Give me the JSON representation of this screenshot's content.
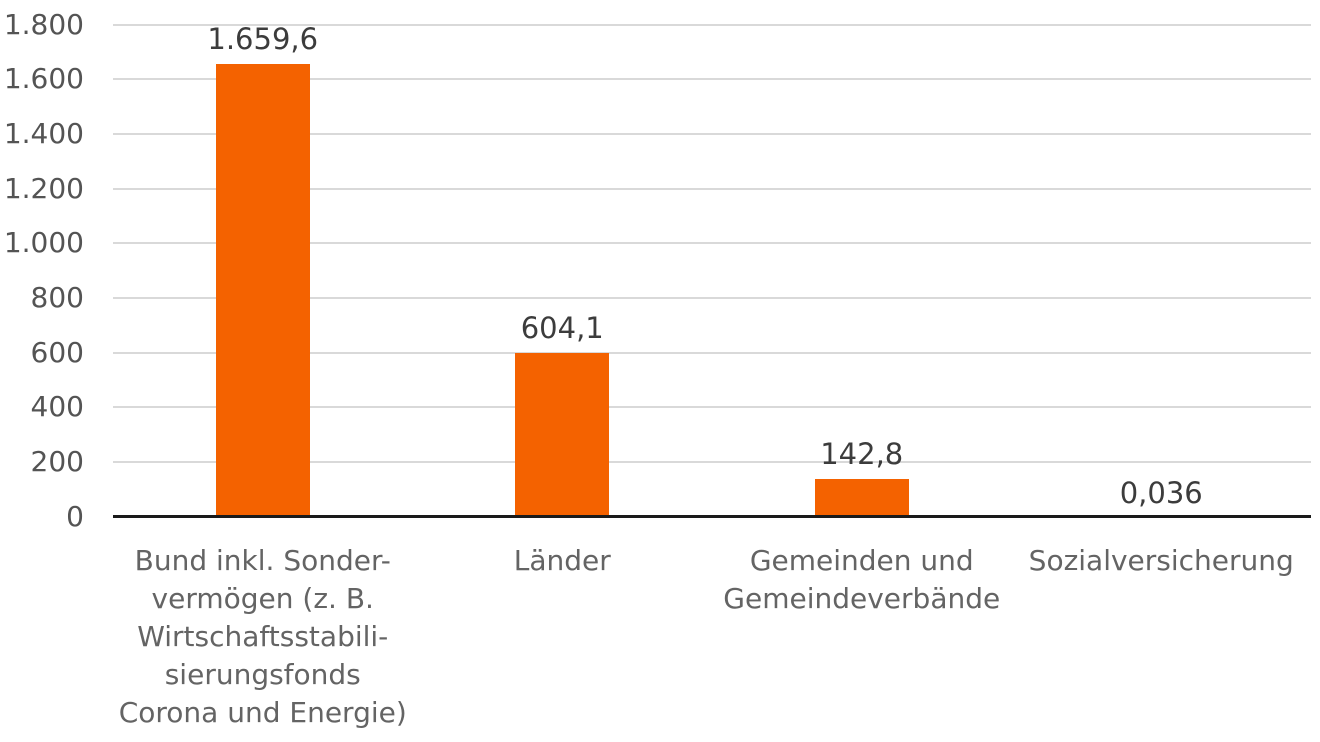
{
  "chart_data": {
    "type": "bar",
    "title": "",
    "xlabel": "",
    "ylabel": "",
    "categories": [
      "Bund inkl. Sondervermögen (z. B. Wirtschaftsstabilisierungsfonds Corona und Energie)",
      "Länder",
      "Gemeinden und Gemeindeverbände",
      "Sozialversicherung"
    ],
    "category_label_lines": [
      [
        "Bund inkl. Sonder-",
        "vermögen (z. B.",
        "Wirtschaftsstabili-",
        "sierungsfonds",
        "Corona und Energie)"
      ],
      [
        "Länder"
      ],
      [
        "Gemeinden und",
        "Gemeindeverbände"
      ],
      [
        "Sozialversicherung"
      ]
    ],
    "values": [
      1659.6,
      604.1,
      142.8,
      0.036
    ],
    "value_labels": [
      "1.659,6",
      "604,1",
      "142,8",
      "0,036"
    ],
    "ylim": [
      0,
      1800
    ],
    "ytick_step": 200,
    "ytick_labels": [
      "0",
      "200",
      "400",
      "600",
      "800",
      "1.000",
      "1.200",
      "1.400",
      "1.600",
      "1.800"
    ],
    "grid": true,
    "legend": "none",
    "colors": {
      "bar": "#f46200",
      "gridline": "#d9d9d9",
      "axis_line": "#1a1a1a",
      "tick_text": "#545454",
      "value_text": "#3c3c3c",
      "category_text": "#646464",
      "background": "#ffffff"
    }
  }
}
